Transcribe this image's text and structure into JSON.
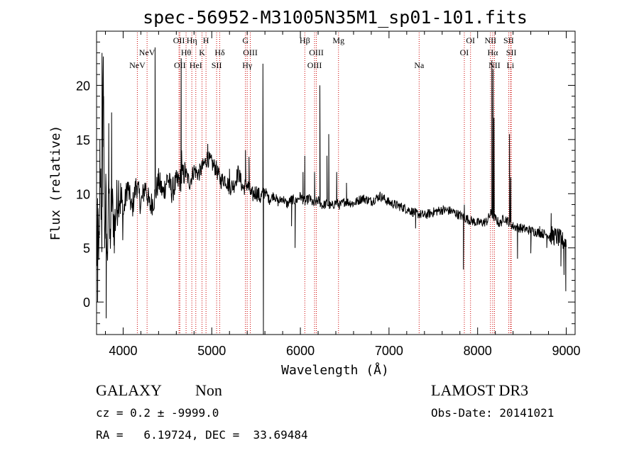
{
  "chart_data": {
    "type": "line",
    "title": "spec-56952-M31005N35M1_sp01-101.fits",
    "xlabel": "Wavelength (Å)",
    "ylabel": "Flux (relative)",
    "xlim": [
      3700,
      9100
    ],
    "ylim": [
      -3,
      25
    ],
    "xticks": [
      4000,
      5000,
      6000,
      7000,
      8000,
      9000
    ],
    "yticks": [
      0,
      5,
      10,
      15,
      20
    ],
    "xtick_labels": [
      "4000",
      "5000",
      "6000",
      "7000",
      "8000",
      "9000"
    ],
    "ytick_labels": [
      "0",
      "5",
      "10",
      "15",
      "20"
    ],
    "colors": {
      "spectrum": "#000000",
      "line_marker": "#cc0000"
    },
    "spectrum_anchors": [
      [
        3700,
        3.0
      ],
      [
        3715,
        8.0
      ],
      [
        3730,
        4.0
      ],
      [
        3745,
        12.0
      ],
      [
        3760,
        6.0
      ],
      [
        3775,
        22.0
      ],
      [
        3790,
        5.0
      ],
      [
        3805,
        10.0
      ],
      [
        3820,
        3.0
      ],
      [
        3835,
        12.5
      ],
      [
        3850,
        5.0
      ],
      [
        3870,
        9.5
      ],
      [
        3900,
        7.0
      ],
      [
        3950,
        10.5
      ],
      [
        4000,
        8.0
      ],
      [
        4050,
        10.8
      ],
      [
        4100,
        8.5
      ],
      [
        4150,
        11.0
      ],
      [
        4200,
        9.0
      ],
      [
        4250,
        10.8
      ],
      [
        4300,
        8.8
      ],
      [
        4350,
        9.5
      ],
      [
        4400,
        11.2
      ],
      [
        4450,
        10.0
      ],
      [
        4500,
        11.5
      ],
      [
        4550,
        10.2
      ],
      [
        4600,
        11.0
      ],
      [
        4650,
        11.3
      ],
      [
        4700,
        12.0
      ],
      [
        4750,
        11.0
      ],
      [
        4800,
        12.2
      ],
      [
        4850,
        11.8
      ],
      [
        4900,
        12.5
      ],
      [
        4950,
        13.3
      ],
      [
        5000,
        12.8
      ],
      [
        5050,
        12.3
      ],
      [
        5100,
        11.2
      ],
      [
        5150,
        11.4
      ],
      [
        5200,
        10.6
      ],
      [
        5250,
        10.8
      ],
      [
        5300,
        12.0
      ],
      [
        5350,
        10.5
      ],
      [
        5400,
        10.9
      ],
      [
        5450,
        9.8
      ],
      [
        5500,
        10.2
      ],
      [
        5550,
        9.6
      ],
      [
        5600,
        10.3
      ],
      [
        5650,
        9.4
      ],
      [
        5700,
        9.9
      ],
      [
        5750,
        9.2
      ],
      [
        5800,
        9.6
      ],
      [
        5850,
        9.0
      ],
      [
        5900,
        9.5
      ],
      [
        5950,
        9.3
      ],
      [
        6000,
        9.8
      ],
      [
        6050,
        9.2
      ],
      [
        6100,
        9.6
      ],
      [
        6150,
        9.0
      ],
      [
        6200,
        9.4
      ],
      [
        6250,
        8.9
      ],
      [
        6300,
        9.1
      ],
      [
        6350,
        8.8
      ],
      [
        6400,
        9.2
      ],
      [
        6450,
        8.9
      ],
      [
        6500,
        9.3
      ],
      [
        6600,
        9.1
      ],
      [
        6700,
        9.6
      ],
      [
        6800,
        9.3
      ],
      [
        6900,
        9.8
      ],
      [
        7000,
        9.2
      ],
      [
        7100,
        8.9
      ],
      [
        7200,
        8.6
      ],
      [
        7300,
        8.2
      ],
      [
        7400,
        8.0
      ],
      [
        7500,
        8.3
      ],
      [
        7600,
        8.5
      ],
      [
        7700,
        8.4
      ],
      [
        7800,
        8.0
      ],
      [
        7900,
        7.6
      ],
      [
        8000,
        7.3
      ],
      [
        8100,
        7.4
      ],
      [
        8150,
        8.2
      ],
      [
        8250,
        7.2
      ],
      [
        8300,
        7.8
      ],
      [
        8400,
        7.0
      ],
      [
        8500,
        6.8
      ],
      [
        8600,
        6.6
      ],
      [
        8700,
        6.4
      ],
      [
        8800,
        6.2
      ],
      [
        8900,
        6.0
      ],
      [
        9000,
        5.4
      ]
    ],
    "spectrum_spikes": [
      [
        3712,
        0.0
      ],
      [
        3738,
        15.0
      ],
      [
        3762,
        23.0
      ],
      [
        3780,
        19.0
      ],
      [
        3793,
        6.0
      ],
      [
        3808,
        -1.5
      ],
      [
        3838,
        16.5
      ],
      [
        3870,
        17.5
      ],
      [
        3900,
        4.5
      ],
      [
        4360,
        23.5
      ],
      [
        4655,
        22.5
      ],
      [
        4660,
        14.0
      ],
      [
        4955,
        14.6
      ],
      [
        5200,
        12.3
      ],
      [
        5380,
        14.0
      ],
      [
        5420,
        13.4
      ],
      [
        5577,
        22.0
      ],
      [
        5583,
        -3.5
      ],
      [
        5900,
        7.0
      ],
      [
        5940,
        5.0
      ],
      [
        6030,
        12.0
      ],
      [
        6050,
        13.5
      ],
      [
        6160,
        12.0
      ],
      [
        6220,
        20.0
      ],
      [
        6300,
        13.5
      ],
      [
        6320,
        15.5
      ],
      [
        6410,
        12.0
      ],
      [
        6520,
        11.0
      ],
      [
        7300,
        6.8
      ],
      [
        7840,
        3.0
      ],
      [
        7850,
        9.0
      ],
      [
        8160,
        22.3
      ],
      [
        8175,
        21.5
      ],
      [
        8185,
        17.0
      ],
      [
        8195,
        8.0
      ],
      [
        8360,
        15.5
      ],
      [
        8375,
        11.5
      ],
      [
        8450,
        4.0
      ],
      [
        8600,
        4.5
      ],
      [
        8700,
        7.0
      ],
      [
        8780,
        5.0
      ],
      [
        8830,
        8.2
      ],
      [
        8940,
        3.3
      ],
      [
        8960,
        6.0
      ],
      [
        8975,
        2.5
      ],
      [
        8985,
        5.8
      ],
      [
        8995,
        1.0
      ]
    ],
    "line_markers": [
      {
        "name": "NeV",
        "x": 4160,
        "row": 3
      },
      {
        "name": "NeV",
        "x": 4270,
        "row": 2
      },
      {
        "name": "OII",
        "x": 4630,
        "row": 1
      },
      {
        "name": "OII",
        "x": 4640,
        "row": 3
      },
      {
        "name": "Hθ",
        "x": 4710,
        "row": 2
      },
      {
        "name": "Hη",
        "x": 4775,
        "row": 1
      },
      {
        "name": "HeI",
        "x": 4820,
        "row": 3
      },
      {
        "name": "K",
        "x": 4890,
        "row": 2
      },
      {
        "name": "H",
        "x": 4935,
        "row": 1
      },
      {
        "name": "Hδ",
        "x": 5090,
        "row": 2
      },
      {
        "name": "SII",
        "x": 5055,
        "row": 3
      },
      {
        "name": "G",
        "x": 5380,
        "row": 1
      },
      {
        "name": "OIII",
        "x": 5435,
        "row": 2
      },
      {
        "name": "Hγ",
        "x": 5400,
        "row": 3
      },
      {
        "name": "Hβ",
        "x": 6050,
        "row": 1
      },
      {
        "name": "OIII",
        "x": 6180,
        "row": 2
      },
      {
        "name": "OIII",
        "x": 6160,
        "row": 3
      },
      {
        "name": "Mg",
        "x": 6430,
        "row": 1
      },
      {
        "name": "Na",
        "x": 7340,
        "row": 3
      },
      {
        "name": "OI",
        "x": 7920,
        "row": 1
      },
      {
        "name": "OI",
        "x": 7850,
        "row": 2
      },
      {
        "name": "NII",
        "x": 8145,
        "row": 1
      },
      {
        "name": "Hα",
        "x": 8170,
        "row": 2
      },
      {
        "name": "NII",
        "x": 8190,
        "row": 3
      },
      {
        "name": "SII",
        "x": 8350,
        "row": 1
      },
      {
        "name": "SII",
        "x": 8380,
        "row": 2
      },
      {
        "name": "Li",
        "x": 8370,
        "row": 3
      }
    ]
  },
  "info": {
    "class": "GALAXY",
    "subclass": "Non",
    "survey": "LAMOST DR3",
    "cz": "cz = 0.2 ± -9999.0",
    "obs_date": "Obs-Date: 20141021",
    "coords": "RA =   6.19724, DEC =  33.69484"
  }
}
